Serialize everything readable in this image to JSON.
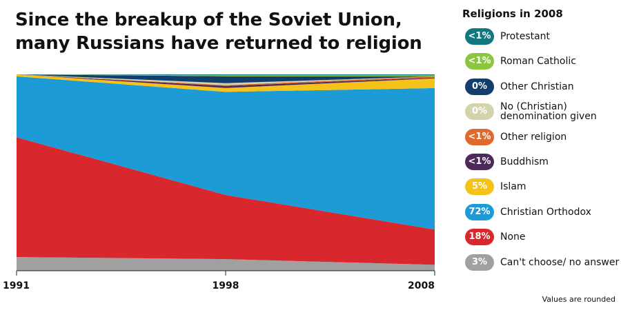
{
  "title_lines": [
    "Since the breakup of the Soviet Union,",
    "many Russians have returned to religion"
  ],
  "legend_heading": "Religions in 2008",
  "note": "Values are rounded",
  "chart_data": {
    "type": "area",
    "stacked": true,
    "normalized": true,
    "x": [
      "1991",
      "1998",
      "2008"
    ],
    "ylim": [
      0,
      100
    ],
    "series": [
      {
        "name": "Can't choose/ no answer",
        "label_2008": "3%",
        "color": "#a0a0a0",
        "values": [
          7,
          6,
          3
        ]
      },
      {
        "name": "None",
        "label_2008": "18%",
        "color": "#d9272e",
        "values": [
          61,
          33,
          18
        ]
      },
      {
        "name": "Christian Orthodox",
        "label_2008": "72%",
        "color": "#1c9bd6",
        "values": [
          31,
          53,
          72
        ]
      },
      {
        "name": "Islam",
        "label_2008": "5%",
        "color": "#f5c21a",
        "values": [
          1,
          2,
          5
        ]
      },
      {
        "name": "Buddhism",
        "label_2008": "<1%",
        "color": "#4e2a5c",
        "values": [
          0,
          1,
          0.4
        ]
      },
      {
        "name": "Other religion",
        "label_2008": "<1%",
        "color": "#e06a2b",
        "values": [
          0,
          0.5,
          0.6
        ]
      },
      {
        "name": "No (Christian) denomination given",
        "label_2008": "0%",
        "color": "#d3d3ad",
        "values": [
          0,
          1,
          0
        ]
      },
      {
        "name": "Other Christian",
        "label_2008": "0%",
        "color": "#123e6e",
        "values": [
          0,
          3.5,
          0
        ]
      },
      {
        "name": "Roman Catholic",
        "label_2008": "<1%",
        "color": "#8cc63f",
        "values": [
          0,
          0.5,
          0.5
        ]
      },
      {
        "name": "Protestant",
        "label_2008": "<1%",
        "color": "#12787f",
        "values": [
          0,
          0.5,
          0.5
        ]
      }
    ]
  }
}
